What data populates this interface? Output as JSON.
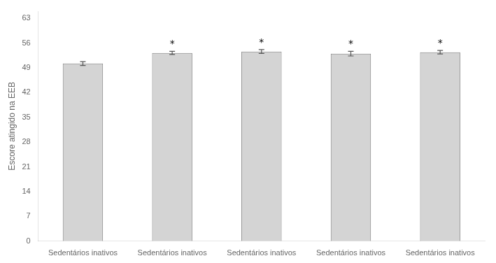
{
  "chart_data": {
    "type": "bar",
    "categories": [
      "Sedentários inativos",
      "Sedentários inativos",
      "Sedentários inativos",
      "Sedentários inativos",
      "Sedentários inativos"
    ],
    "values": [
      50.2,
      53.2,
      53.6,
      53.0,
      53.4
    ],
    "errors": [
      0.55,
      0.45,
      0.55,
      0.65,
      0.5
    ],
    "color": "#d4d4d4",
    "ylabel": "Escore atingido na EEB",
    "ylim": [
      0,
      65
    ],
    "yticks": [
      0,
      7,
      14,
      21,
      28,
      35,
      42,
      49,
      56,
      63
    ],
    "grid": false,
    "annotations": [
      {
        "text": "*",
        "index": 1
      },
      {
        "text": "*",
        "index": 2
      },
      {
        "text": "*",
        "index": 3
      },
      {
        "text": "*",
        "index": 4
      }
    ]
  }
}
